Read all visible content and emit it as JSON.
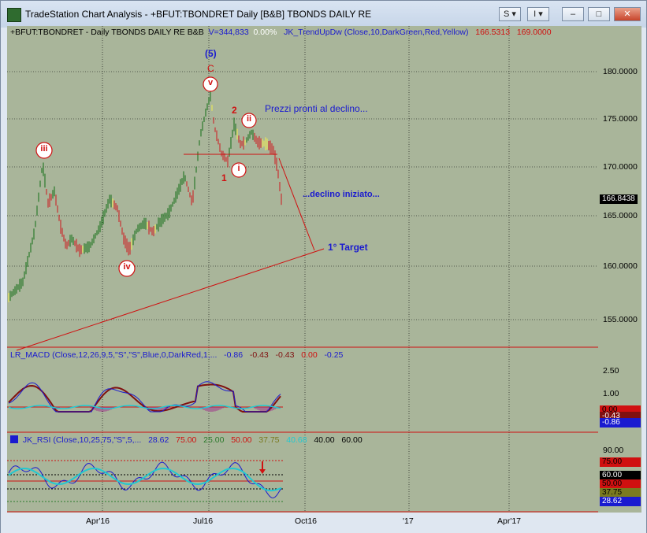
{
  "window": {
    "title": "TradeStation Chart Analysis - +BFUT:TBONDRET Daily [B&B] TBONDS DAILY RE",
    "btn_s": "S",
    "btn_i": "I",
    "btn_min": "–",
    "btn_max": "□",
    "btn_close": "✕"
  },
  "colors": {
    "plot_bg": "#a9b59a",
    "up": "#2c7a2c",
    "down": "#c83232",
    "neutral": "#e6e65a",
    "blue_text": "#1a1ad0",
    "red_text": "#d01010"
  },
  "price_header": {
    "symbol": "+BFUT:TBONDRET - Daily  TBONDS DAILY RE  B&B",
    "volume": "V=344,833",
    "change": "0.00%",
    "indicator": "JK_TrendUpDw (Close,10,DarkGreen,Red,Yellow)",
    "value1": "166.5313",
    "value2": "169.0000"
  },
  "macd_header": {
    "label": "LR_MACD (Close,12,26,9,5,\"S\",\"S\",Blue,0,DarkRed,1,...",
    "v1": "-0.86",
    "v2": "-0.43",
    "v3": "-0.43",
    "v4": "0.00",
    "v5": "-0.25"
  },
  "rsi_header": {
    "label": "JK_RSI (Close,10,25,75,\"S\",5,...",
    "v1": "28.62",
    "v2": "75.00",
    "v3": "25.00",
    "v4": "50.00",
    "v5": "37.75",
    "v6": "40.68",
    "v7": "40.00",
    "v8": "60.00"
  },
  "annotations": {
    "wave5": "(5)",
    "waveC": "C",
    "wave_v": "v",
    "wave_iii": "iii",
    "wave_iv": "iv",
    "wave_i": "i",
    "wave_ii": "ii",
    "wave1": "1",
    "wave2": "2",
    "note_decline_ready": "Prezzi pronti al declino...",
    "note_decline_started": "...declino iniziato...",
    "note_target": "1° Target"
  },
  "price_axis": {
    "ticks": [
      "180.0000",
      "175.0000",
      "170.0000",
      "165.0000",
      "160.0000",
      "155.0000"
    ],
    "last_price": "166.8438"
  },
  "macd_axis": {
    "ticks": [
      "2.50",
      "1.00"
    ],
    "tags": [
      "0.00",
      "-0.43",
      "-0.86"
    ]
  },
  "rsi_axis": {
    "ticks": [
      "90.00"
    ],
    "tags": [
      "75.00",
      "60.00",
      "50.00",
      "37.75",
      "28.62"
    ]
  },
  "x_axis": {
    "labels": [
      "Apr'16",
      "Jul16",
      "Oct16",
      "'17",
      "Apr'17"
    ]
  }
}
